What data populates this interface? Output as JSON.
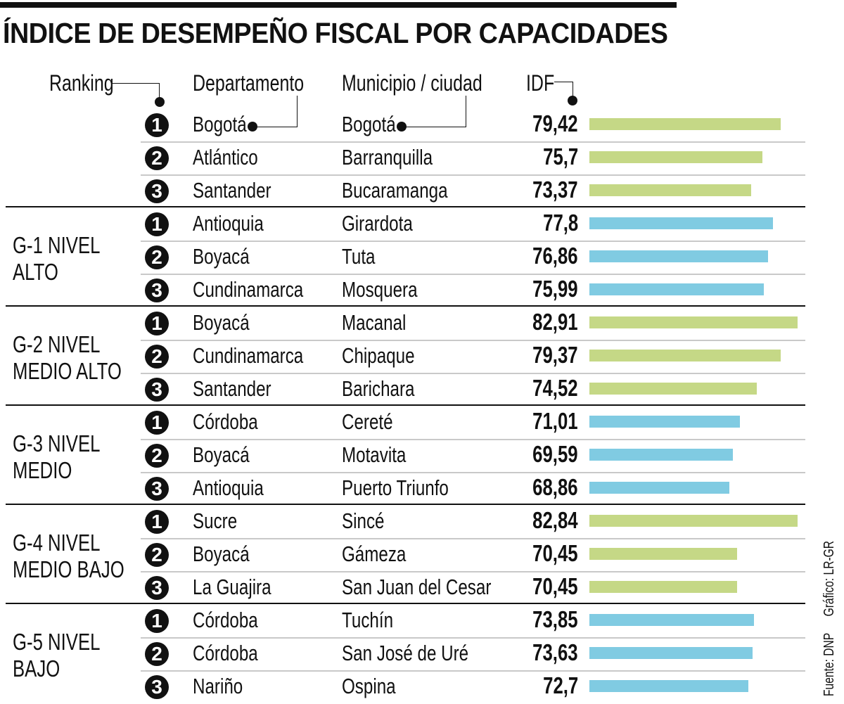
{
  "title": "ÍNDICE DE DESEMPEÑO FISCAL POR CAPACIDADES",
  "headers": {
    "ranking": "Ranking",
    "departamento": "Departamento",
    "municipio": "Municipio /  ciudad",
    "idf": "IDF"
  },
  "colors": {
    "green": "#c5d886",
    "blue": "#80cbe2"
  },
  "source": "Fuente: DNP",
  "credit": "Gráfico: LR-GR",
  "chart_data": {
    "type": "bar",
    "title": "ÍNDICE DE DESEMPEÑO FISCAL POR CAPACIDADES",
    "xlabel": "",
    "ylabel": "IDF",
    "groups": [
      {
        "label": [
          "",
          ""
        ],
        "color": "green",
        "rows": [
          {
            "rank": "1",
            "departamento": "Bogotá",
            "municipio": "Bogotá",
            "idf_label": "79,42",
            "idf": 79.42
          },
          {
            "rank": "2",
            "departamento": "Atlántico",
            "municipio": "Barranquilla",
            "idf_label": "75,7",
            "idf": 75.7
          },
          {
            "rank": "3",
            "departamento": "Santander",
            "municipio": "Bucaramanga",
            "idf_label": "73,37",
            "idf": 73.37
          }
        ]
      },
      {
        "label": [
          "G-1 NIVEL",
          "ALTO"
        ],
        "color": "blue",
        "rows": [
          {
            "rank": "1",
            "departamento": "Antioquia",
            "municipio": "Girardota",
            "idf_label": "77,8",
            "idf": 77.8
          },
          {
            "rank": "2",
            "departamento": "Boyacá",
            "municipio": "Tuta",
            "idf_label": "76,86",
            "idf": 76.86
          },
          {
            "rank": "3",
            "departamento": "Cundinamarca",
            "municipio": "Mosquera",
            "idf_label": "75,99",
            "idf": 75.99
          }
        ]
      },
      {
        "label": [
          "G-2 NIVEL",
          "MEDIO ALTO"
        ],
        "color": "green",
        "rows": [
          {
            "rank": "1",
            "departamento": "Boyacá",
            "municipio": "Macanal",
            "idf_label": "82,91",
            "idf": 82.91
          },
          {
            "rank": "2",
            "departamento": "Cundinamarca",
            "municipio": "Chipaque",
            "idf_label": "79,37",
            "idf": 79.37
          },
          {
            "rank": "3",
            "departamento": "Santander",
            "municipio": "Barichara",
            "idf_label": "74,52",
            "idf": 74.52
          }
        ]
      },
      {
        "label": [
          "G-3 NIVEL",
          "MEDIO"
        ],
        "color": "blue",
        "rows": [
          {
            "rank": "1",
            "departamento": "Córdoba",
            "municipio": "Cereté",
            "idf_label": "71,01",
            "idf": 71.01
          },
          {
            "rank": "2",
            "departamento": "Boyacá",
            "municipio": "Motavita",
            "idf_label": "69,59",
            "idf": 69.59
          },
          {
            "rank": "3",
            "departamento": "Antioquia",
            "municipio": "Puerto Triunfo",
            "idf_label": "68,86",
            "idf": 68.86
          }
        ]
      },
      {
        "label": [
          "G-4 NIVEL",
          "MEDIO BAJO"
        ],
        "color": "green",
        "rows": [
          {
            "rank": "1",
            "departamento": "Sucre",
            "municipio": "Sincé",
            "idf_label": "82,84",
            "idf": 82.84
          },
          {
            "rank": "2",
            "departamento": "Boyacá",
            "municipio": "Gámeza",
            "idf_label": "70,45",
            "idf": 70.45
          },
          {
            "rank": "3",
            "departamento": "La Guajira",
            "municipio": "San Juan del Cesar",
            "idf_label": "70,45",
            "idf": 70.45
          }
        ]
      },
      {
        "label": [
          "G-5 NIVEL",
          "BAJO"
        ],
        "color": "blue",
        "rows": [
          {
            "rank": "1",
            "departamento": "Córdoba",
            "municipio": "Tuchín",
            "idf_label": "73,85",
            "idf": 73.85
          },
          {
            "rank": "2",
            "departamento": "Córdoba",
            "municipio": "San José de Uré",
            "idf_label": "73,63",
            "idf": 73.63
          },
          {
            "rank": "3",
            "departamento": "Nariño",
            "municipio": "Ospina",
            "idf_label": "72,7",
            "idf": 72.7
          }
        ]
      }
    ]
  }
}
